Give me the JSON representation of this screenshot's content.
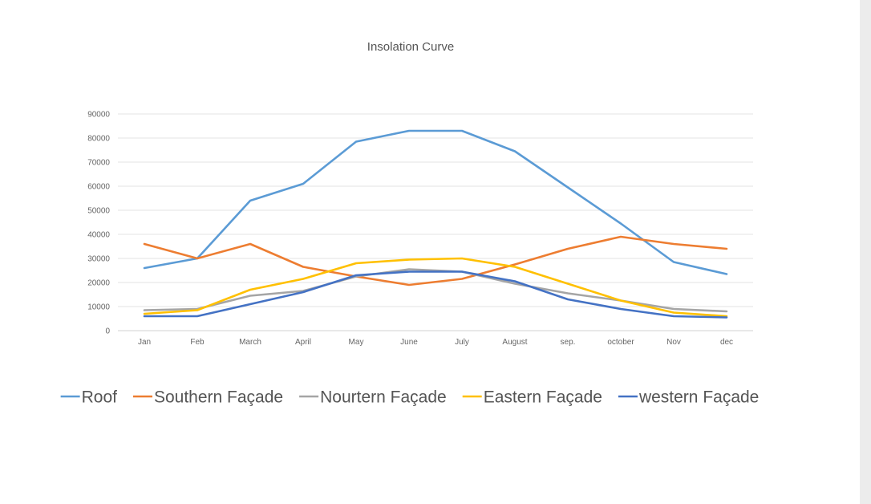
{
  "chart_data": {
    "type": "line",
    "title": "Insolation Curve",
    "xlabel": "",
    "ylabel": "",
    "categories": [
      "Jan",
      "Feb",
      "March",
      "April",
      "May",
      "June",
      "July",
      "August",
      "sep.",
      "october",
      "Nov",
      "dec"
    ],
    "ylim": [
      0,
      90000
    ],
    "yticks": [
      0,
      10000,
      20000,
      30000,
      40000,
      50000,
      60000,
      70000,
      80000,
      90000
    ],
    "grid": true,
    "legend_position": "bottom",
    "series": [
      {
        "name": "Roof",
        "color": "#5b9bd5",
        "values": [
          26000,
          30000,
          54000,
          61000,
          78500,
          83000,
          83000,
          74500,
          59500,
          44500,
          28500,
          23500
        ]
      },
      {
        "name": "Southern Façade",
        "color": "#ed7d31",
        "values": [
          36000,
          30000,
          36000,
          26500,
          22500,
          19000,
          21500,
          27500,
          34000,
          39000,
          36000,
          34000
        ]
      },
      {
        "name": "Nourtern Façade",
        "color": "#a5a5a5",
        "values": [
          8500,
          9000,
          14500,
          16500,
          22500,
          25500,
          24500,
          19500,
          15500,
          12500,
          9000,
          8000
        ]
      },
      {
        "name": "Eastern Façade",
        "color": "#ffc000",
        "values": [
          7000,
          8500,
          17000,
          21500,
          28000,
          29500,
          30000,
          26500,
          19500,
          12500,
          7500,
          6000
        ]
      },
      {
        "name": "western Façade",
        "color": "#4472c4",
        "values": [
          6000,
          6000,
          11000,
          16000,
          23000,
          24500,
          24500,
          20500,
          13000,
          9000,
          6000,
          5500
        ]
      }
    ]
  }
}
